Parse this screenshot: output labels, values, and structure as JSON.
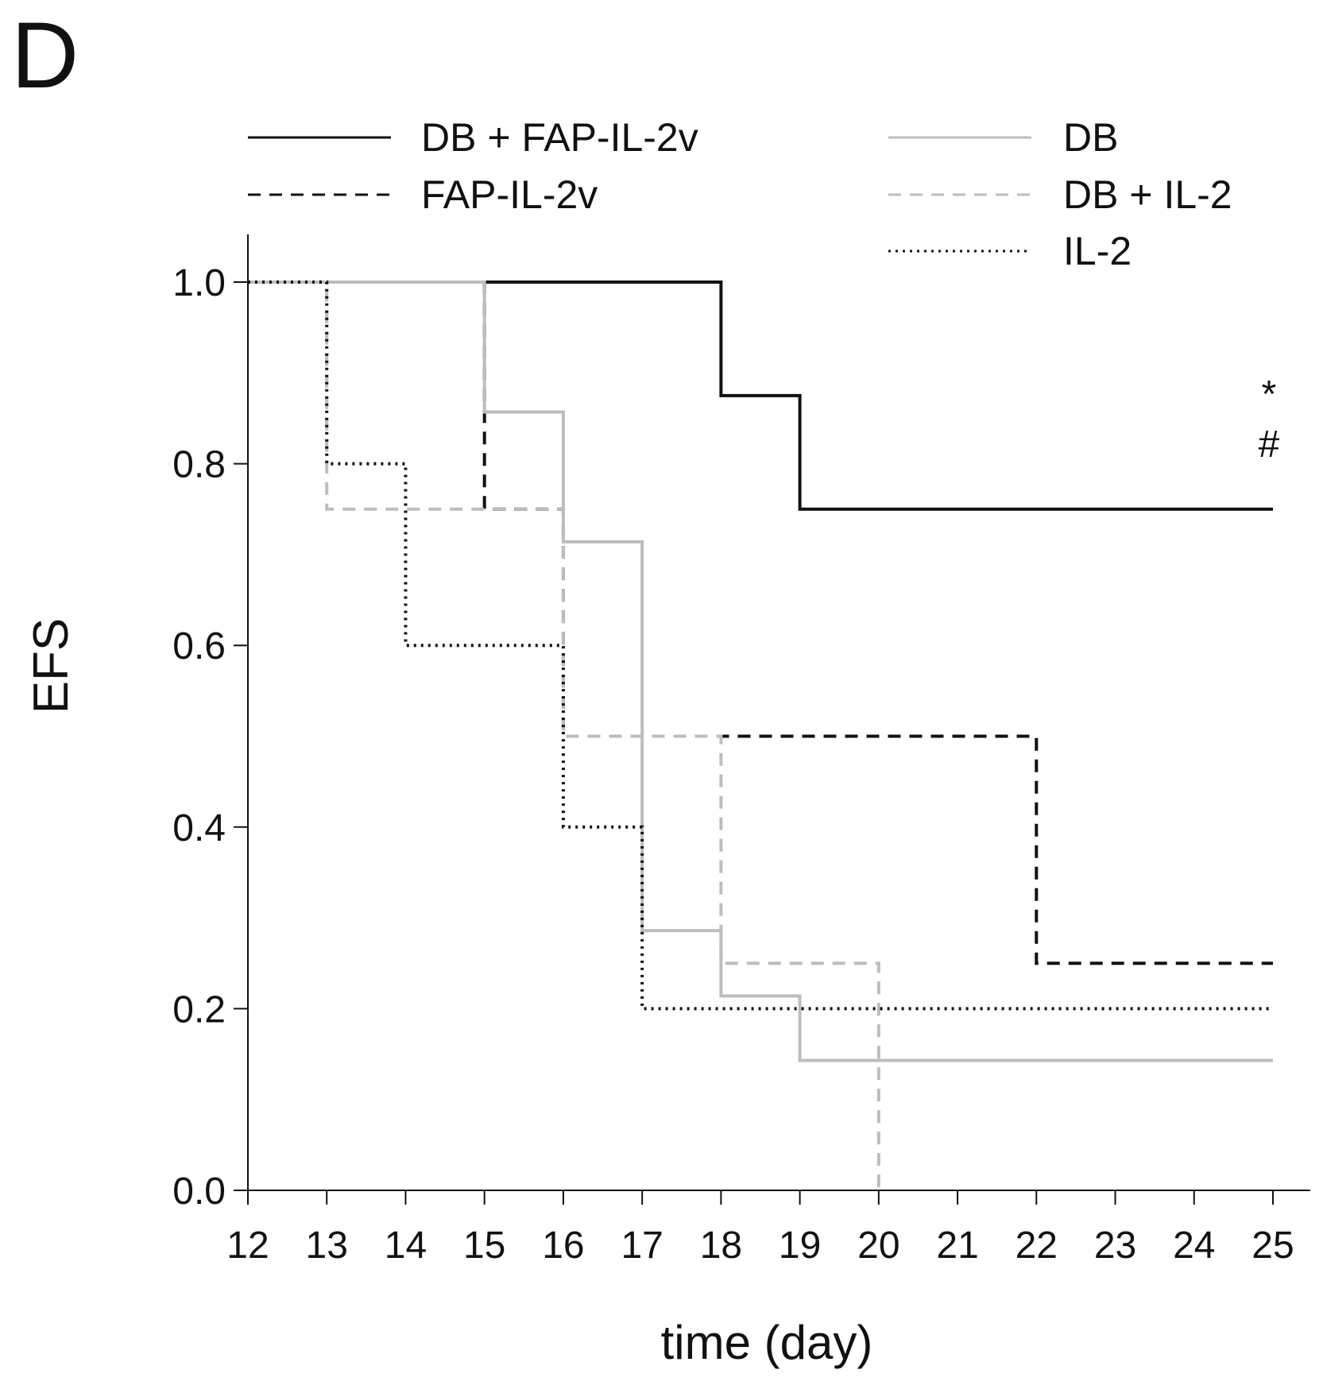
{
  "panel_label": "D",
  "chart_data": {
    "type": "line",
    "subtype": "kaplan-meier step",
    "title": "",
    "xlabel": "time (day)",
    "ylabel": "EFS",
    "xlim": [
      12,
      25
    ],
    "ylim": [
      0,
      1
    ],
    "x_ticks": [
      "12",
      "13",
      "14",
      "15",
      "16",
      "17",
      "18",
      "19",
      "20",
      "21",
      "22",
      "23",
      "24",
      "25"
    ],
    "y_ticks": [
      "0.0",
      "0.2",
      "0.4",
      "0.6",
      "0.8",
      "1.0"
    ],
    "annotations": [
      "*",
      "#"
    ],
    "legend_position": "top",
    "series": [
      {
        "name": "DB + FAP-IL-2v",
        "color": "#111111",
        "style": "solid",
        "points": [
          [
            12,
            1.0
          ],
          [
            18,
            0.875
          ],
          [
            19,
            0.75
          ],
          [
            25,
            0.75
          ]
        ]
      },
      {
        "name": "FAP-IL-2v",
        "color": "#111111",
        "style": "dashed",
        "points": [
          [
            12,
            1.0
          ],
          [
            15,
            0.75
          ],
          [
            16,
            0.5
          ],
          [
            22,
            0.25
          ],
          [
            25,
            0.25
          ]
        ]
      },
      {
        "name": "DB",
        "color": "#bdbdbd",
        "style": "solid",
        "points": [
          [
            12,
            1.0
          ],
          [
            15,
            0.857
          ],
          [
            16,
            0.714
          ],
          [
            17,
            0.286
          ],
          [
            18,
            0.214
          ],
          [
            19,
            0.143
          ],
          [
            25,
            0.143
          ]
        ]
      },
      {
        "name": "DB + IL-2",
        "color": "#bdbdbd",
        "style": "dashed",
        "points": [
          [
            12,
            1.0
          ],
          [
            13,
            0.75
          ],
          [
            16,
            0.5
          ],
          [
            18,
            0.25
          ],
          [
            20,
            0.0
          ]
        ]
      },
      {
        "name": "IL-2",
        "color": "#111111",
        "style": "dotted",
        "points": [
          [
            12,
            1.0
          ],
          [
            13,
            0.8
          ],
          [
            14,
            0.6
          ],
          [
            16,
            0.4
          ],
          [
            17,
            0.2
          ],
          [
            25,
            0.2
          ]
        ]
      }
    ]
  }
}
